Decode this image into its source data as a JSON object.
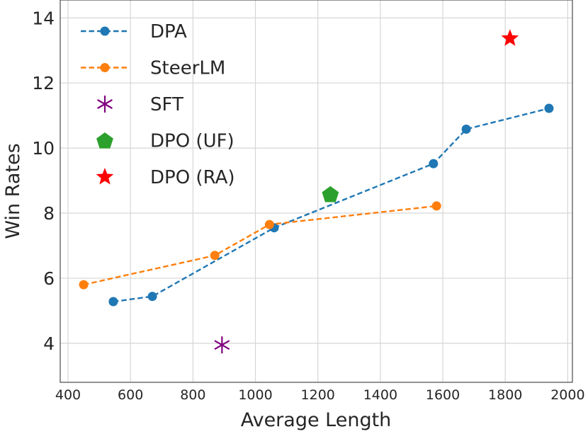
{
  "chart_data": {
    "type": "line",
    "xlabel": "Average Length",
    "ylabel": "Win Rates",
    "xlim": [
      375,
      2015
    ],
    "ylim": [
      2.8,
      14.55
    ],
    "xticks": [
      400,
      600,
      800,
      1000,
      1200,
      1400,
      1600,
      1800,
      2000
    ],
    "yticks": [
      4,
      6,
      8,
      10,
      12,
      14
    ],
    "grid": true,
    "legend_position": "top-left",
    "series": [
      {
        "name": "DPA",
        "kind": "dashed-line-markers",
        "marker": "circle",
        "color": "#1f77b4",
        "x": [
          545,
          670,
          1060,
          1570,
          1675,
          1940
        ],
        "y": [
          5.28,
          5.44,
          7.55,
          9.52,
          10.58,
          11.22
        ]
      },
      {
        "name": "SteerLM",
        "kind": "dashed-line-markers",
        "marker": "circle",
        "color": "#ff7f0e",
        "x": [
          450,
          870,
          1045,
          1580
        ],
        "y": [
          5.8,
          6.7,
          7.65,
          8.22
        ]
      },
      {
        "name": "SFT",
        "kind": "scatter",
        "marker": "asterisk",
        "color": "#800080",
        "x": [
          893
        ],
        "y": [
          3.95
        ]
      },
      {
        "name": "DPO (UF)",
        "kind": "scatter",
        "marker": "pentagon",
        "color": "#2ca02c",
        "x": [
          1240
        ],
        "y": [
          8.58
        ]
      },
      {
        "name": "DPO (RA)",
        "kind": "scatter",
        "marker": "star",
        "color": "#ff0000",
        "x": [
          1815
        ],
        "y": [
          13.37
        ]
      }
    ]
  }
}
